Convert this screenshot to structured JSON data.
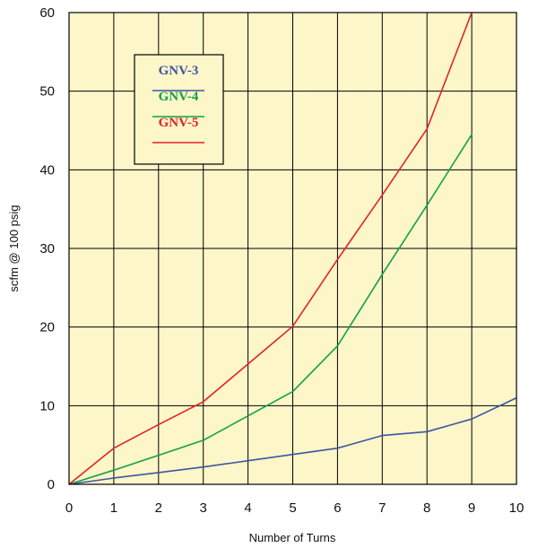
{
  "chart_data": {
    "type": "line",
    "xlabel": "Number of Turns",
    "ylabel": "scfm @ 100 psig",
    "xlim": [
      0,
      10
    ],
    "ylim": [
      0,
      60
    ],
    "xticks": [
      0,
      1,
      2,
      3,
      4,
      5,
      6,
      7,
      8,
      9,
      10
    ],
    "yticks": [
      0,
      10,
      20,
      30,
      40,
      50,
      60
    ],
    "grid": true,
    "background_color": "#fdf6c8",
    "legend_position": "top-left",
    "series": [
      {
        "name": "GNV-3",
        "color": "#3b55a6",
        "x": [
          0,
          1,
          2,
          3,
          4,
          5,
          6,
          7,
          8,
          9,
          10
        ],
        "y": [
          0,
          0.8,
          1.5,
          2.2,
          3.0,
          3.8,
          4.6,
          6.2,
          6.7,
          8.3,
          11.0
        ]
      },
      {
        "name": "GNV-4",
        "color": "#11a04a",
        "x": [
          0,
          1,
          2,
          3,
          4,
          5,
          6,
          7,
          8,
          9
        ],
        "y": [
          0,
          1.8,
          3.7,
          5.6,
          8.7,
          11.8,
          17.6,
          26.7,
          35.5,
          44.5
        ]
      },
      {
        "name": "GNV-5",
        "color": "#e4202a",
        "x": [
          0,
          1,
          2,
          3,
          4,
          5,
          6,
          7,
          8,
          9
        ],
        "y": [
          0,
          4.6,
          7.6,
          10.5,
          15.3,
          20.1,
          28.6,
          36.8,
          45.2,
          60.0
        ]
      }
    ]
  }
}
